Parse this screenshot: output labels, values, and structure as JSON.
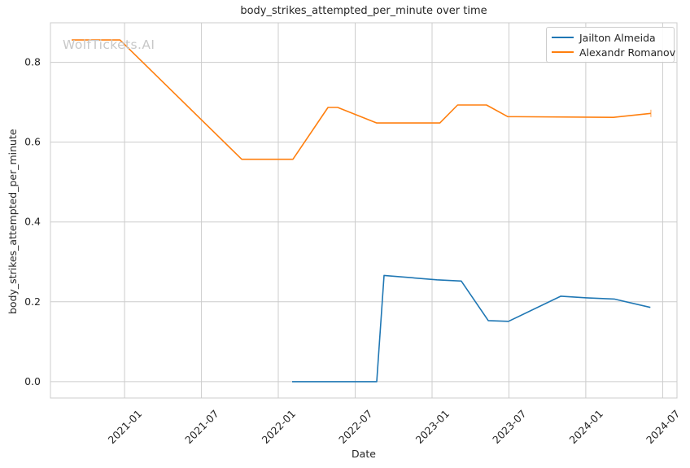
{
  "watermark": {
    "text": "WolfTickets.AI",
    "color": "#c8c8c8"
  },
  "chart_data": {
    "type": "line",
    "title": "body_strikes_attempted_per_minute over time",
    "xlabel": "Date",
    "ylabel": "body_strikes_attempted_per_minute",
    "x_format": "decimal_year",
    "grid": true,
    "legend_position": "upper-right",
    "xlim": [
      2020.518,
      2024.593
    ],
    "ylim": [
      -0.041,
      0.899
    ],
    "x_ticks": [
      {
        "x": 2021.0,
        "label": "2021-01"
      },
      {
        "x": 2021.5,
        "label": "2021-07"
      },
      {
        "x": 2022.0,
        "label": "2022-01"
      },
      {
        "x": 2022.5,
        "label": "2022-07"
      },
      {
        "x": 2023.0,
        "label": "2023-01"
      },
      {
        "x": 2023.5,
        "label": "2023-07"
      },
      {
        "x": 2024.0,
        "label": "2024-01"
      },
      {
        "x": 2024.5,
        "label": "2024-07"
      }
    ],
    "y_ticks": [
      {
        "y": 0.0,
        "label": "0.0"
      },
      {
        "y": 0.2,
        "label": "0.2"
      },
      {
        "y": 0.4,
        "label": "0.4"
      },
      {
        "y": 0.6,
        "label": "0.6"
      },
      {
        "y": 0.8,
        "label": "0.8"
      }
    ],
    "series": [
      {
        "name": "Jailton Almeida",
        "color": "#1f77b4",
        "end_cap": false,
        "points": [
          [
            2022.09,
            0.0
          ],
          [
            2022.64,
            0.0
          ],
          [
            2022.688,
            0.266
          ],
          [
            2023.032,
            0.255
          ],
          [
            2023.19,
            0.252
          ],
          [
            2023.366,
            0.153
          ],
          [
            2023.497,
            0.151
          ],
          [
            2023.838,
            0.214
          ],
          [
            2024.005,
            0.21
          ],
          [
            2024.185,
            0.207
          ],
          [
            2024.42,
            0.186
          ]
        ]
      },
      {
        "name": "Alexandr Romanov",
        "color": "#ff7f0e",
        "end_cap": true,
        "points": [
          [
            2020.656,
            0.856
          ],
          [
            2020.97,
            0.856
          ],
          [
            2021.762,
            0.557
          ],
          [
            2022.095,
            0.557
          ],
          [
            2022.323,
            0.687
          ],
          [
            2022.386,
            0.687
          ],
          [
            2022.64,
            0.648
          ],
          [
            2023.051,
            0.648
          ],
          [
            2023.166,
            0.693
          ],
          [
            2023.354,
            0.693
          ],
          [
            2023.492,
            0.664
          ],
          [
            2024.18,
            0.662
          ],
          [
            2024.423,
            0.672
          ]
        ]
      }
    ]
  }
}
